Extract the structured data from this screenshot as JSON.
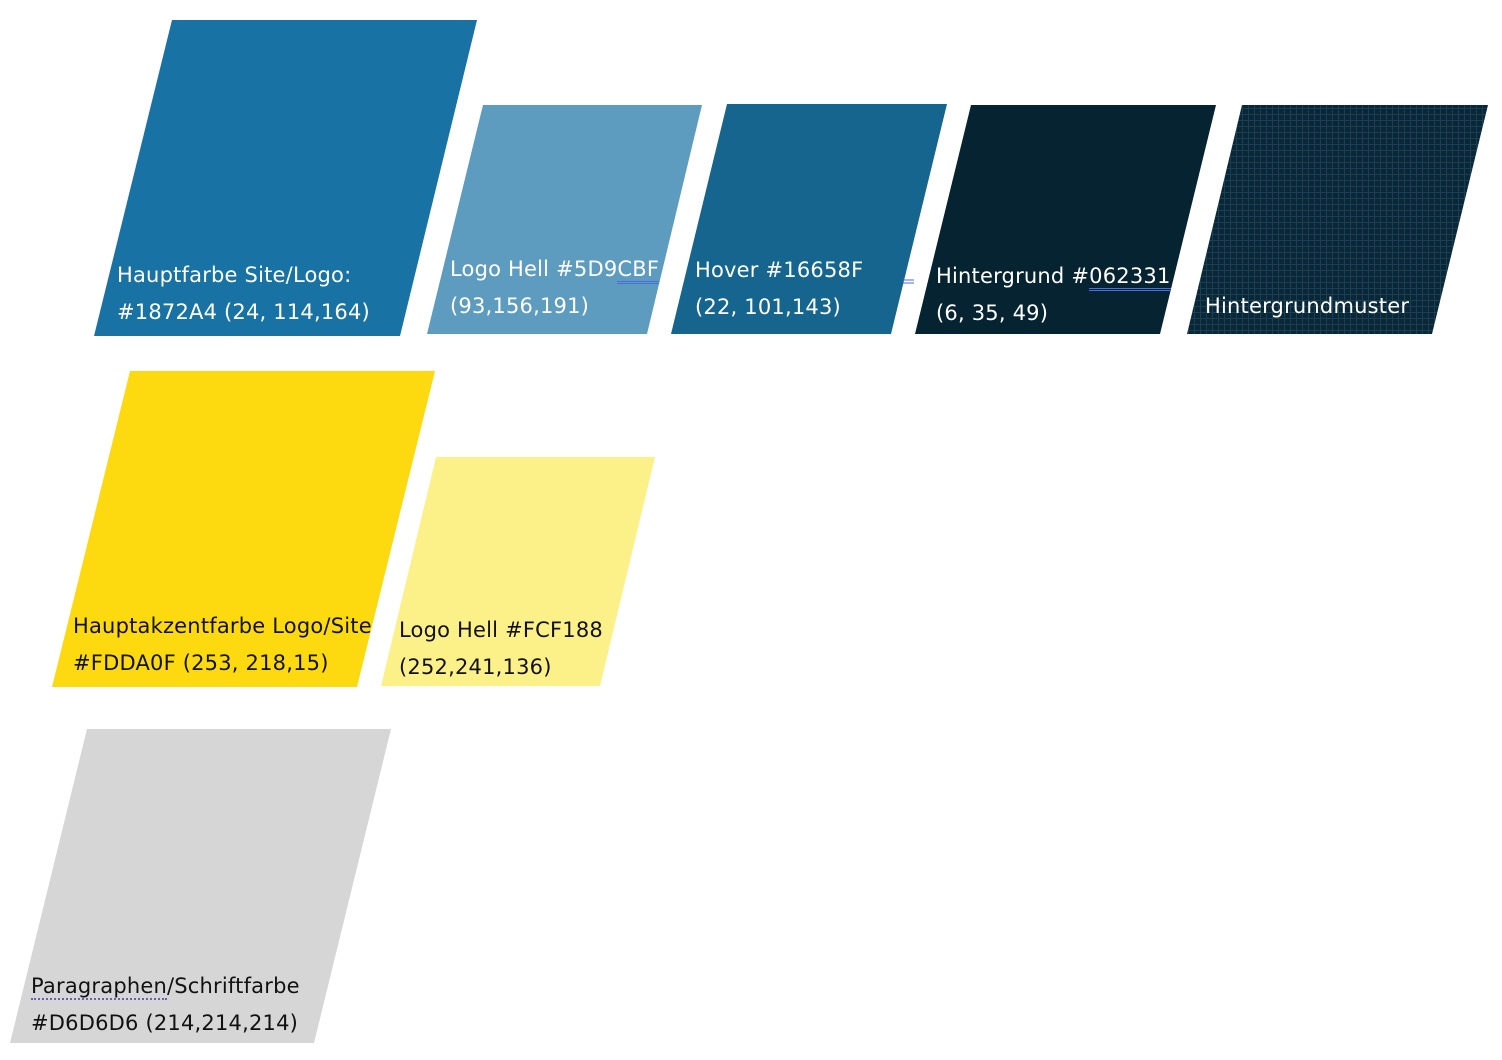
{
  "swatches": [
    {
      "name": "hauptfarbe",
      "color": "#1872A4",
      "line1": "Hauptfarbe Site/Logo:",
      "line2": "#1872A4 (24, 114,164)"
    },
    {
      "name": "logo-hell-blue",
      "color": "#5D9CBF",
      "line1_a": "Logo Hell #5D9",
      "line1_b": "CBF",
      "line2": "(93,156,191)"
    },
    {
      "name": "hover",
      "color": "#16658F",
      "line1": "Hover #16658F",
      "line2": "(22, 101,143)"
    },
    {
      "name": "hintergrund",
      "color": "#062331",
      "line1_a": "Hintergrund #",
      "line1_b": "062331",
      "line2": "(6, 35, 49)"
    },
    {
      "name": "hintergrundmuster",
      "color": "#0A2738",
      "pattern_line": "#1A3E52",
      "line1": "Hintergrundmuster"
    },
    {
      "name": "hauptakzentfarbe",
      "color": "#FDDA0F",
      "line1": "Hauptakzentfarbe Logo/Site",
      "line2": "#FDDA0F (253, 218,15)"
    },
    {
      "name": "logo-hell-yellow",
      "color": "#FCF188",
      "line1": "Logo Hell #FCF188",
      "line2": "(252,241,136)"
    },
    {
      "name": "paragraphen",
      "color": "#D6D6D6",
      "line1_a": "Paragraphen",
      "line1_b": "/Schriftfarbe",
      "line2": "#D6D6D6 (214,214,214)"
    }
  ]
}
